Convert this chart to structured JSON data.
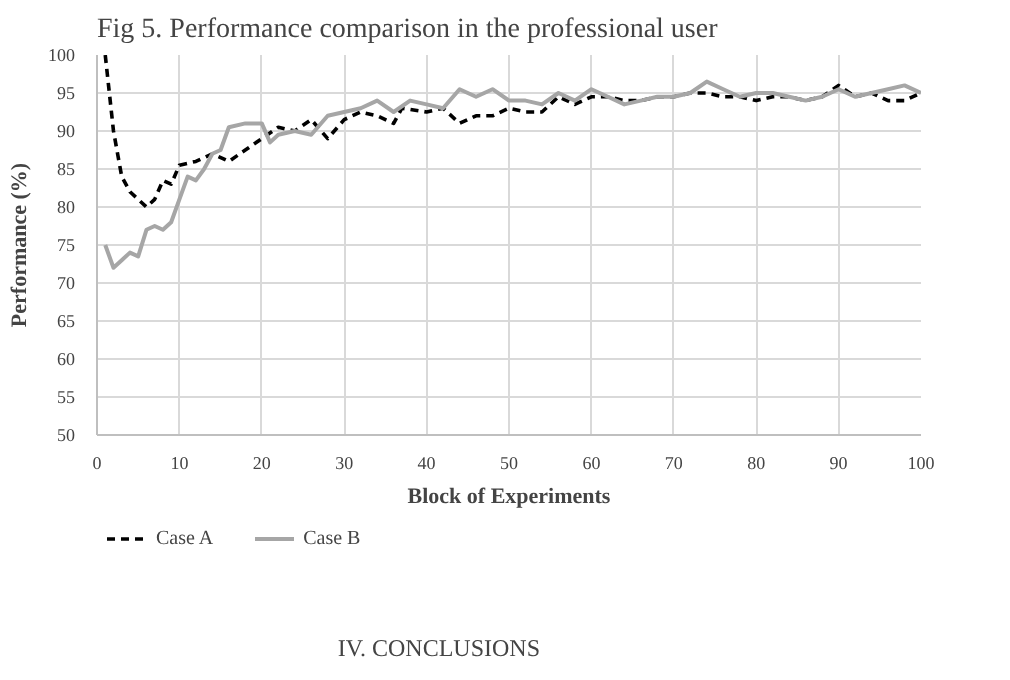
{
  "chart_data": {
    "type": "line",
    "title": "Fig 5. Performance comparison in the professional user",
    "xlabel": "Block of Experiments",
    "ylabel": "Performance (%)",
    "xlim": [
      0,
      100
    ],
    "xticks": [
      0,
      10,
      20,
      30,
      40,
      50,
      60,
      70,
      80,
      90,
      100
    ],
    "ylim": [
      50,
      100
    ],
    "yticks": [
      50,
      55,
      60,
      65,
      70,
      75,
      80,
      85,
      90,
      95,
      100
    ],
    "grid": true,
    "legend": "bottom left",
    "series": [
      {
        "name": "Case A",
        "color": "#000000",
        "line_style": "dashed",
        "x": [
          1,
          2,
          3,
          4,
          5,
          6,
          7,
          8,
          9,
          10,
          12,
          14,
          16,
          18,
          20,
          22,
          24,
          26,
          28,
          30,
          32,
          34,
          36,
          37,
          40,
          42,
          44,
          46,
          48,
          50,
          52,
          54,
          56,
          58,
          60,
          62,
          64,
          66,
          68,
          70,
          72,
          74,
          76,
          78,
          80,
          82,
          84,
          86,
          88,
          90,
          92,
          94,
          96,
          98,
          100
        ],
        "values": [
          100,
          90,
          84,
          82,
          81,
          80,
          81,
          83.5,
          83,
          85.5,
          86,
          87,
          86,
          87.5,
          89,
          90.5,
          90,
          91.5,
          89,
          91.5,
          92.5,
          92,
          91,
          93,
          92.5,
          93,
          91,
          92,
          92,
          93,
          92.5,
          92.5,
          94.5,
          93.5,
          94.5,
          94.5,
          94,
          94,
          94.5,
          94.5,
          95,
          95,
          94.5,
          94.5,
          94,
          94.5,
          94.5,
          94,
          94.5,
          96,
          94.5,
          95,
          94,
          94,
          95
        ]
      },
      {
        "name": "Case B",
        "color": "#a6a6a6",
        "line_style": "solid",
        "x": [
          1,
          2,
          3,
          4,
          5,
          6,
          7,
          8,
          9,
          10,
          11,
          12,
          13,
          14,
          15,
          16,
          18,
          20,
          21,
          22,
          24,
          26,
          28,
          30,
          32,
          34,
          36,
          38,
          40,
          42,
          44,
          46,
          48,
          50,
          52,
          54,
          56,
          58,
          60,
          62,
          64,
          66,
          68,
          70,
          72,
          74,
          76,
          78,
          80,
          82,
          84,
          86,
          88,
          90,
          92,
          94,
          96,
          98,
          100
        ],
        "values": [
          75,
          72,
          73,
          74,
          73.5,
          77,
          77.5,
          77,
          78,
          81,
          84,
          83.5,
          85,
          87,
          87.5,
          90.5,
          91,
          91,
          88.5,
          89.5,
          90,
          89.5,
          92,
          92.5,
          93,
          94,
          92.5,
          94,
          93.5,
          93,
          95.5,
          94.5,
          95.5,
          94,
          94,
          93.5,
          95,
          94,
          95.5,
          94.5,
          93.5,
          94,
          94.5,
          94.5,
          95,
          96.5,
          95.5,
          94.5,
          95,
          95,
          94.5,
          94,
          94.5,
          95.5,
          94.5,
          95,
          95.5,
          96,
          95
        ]
      }
    ],
    "annotations": [
      "IV. CONCLUSIONS"
    ]
  }
}
